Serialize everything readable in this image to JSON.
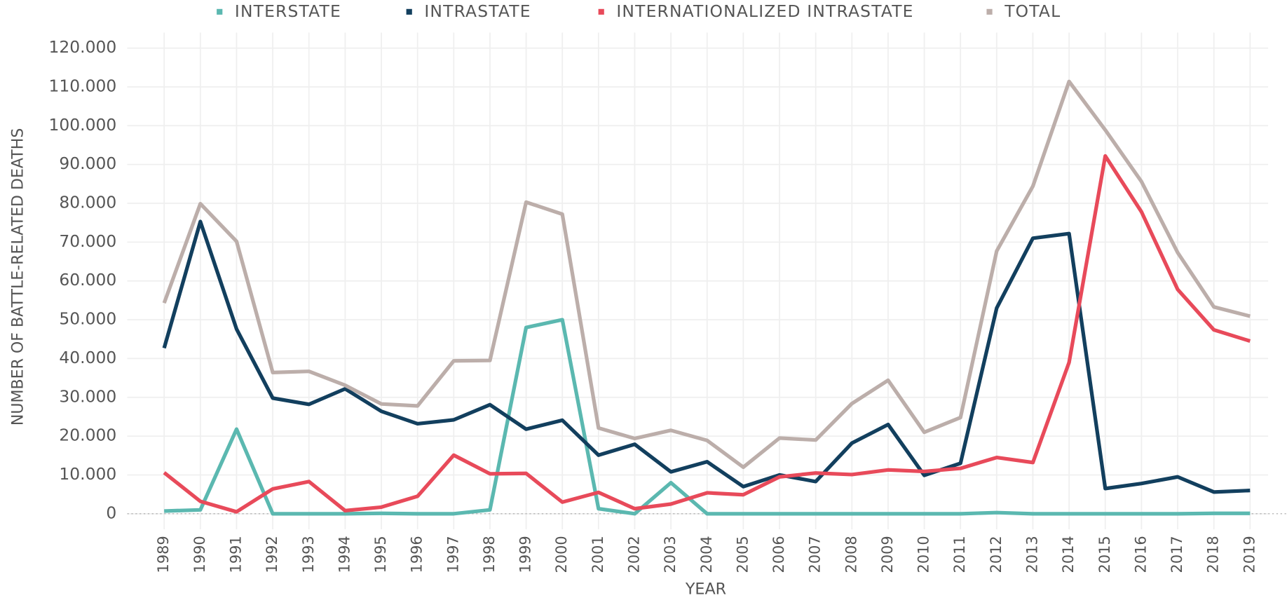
{
  "chart_data": {
    "type": "line",
    "x_label": "YEAR",
    "y_label": "NUMBER OF BATTLE-RELATED DEATHS",
    "categories": [
      "1989",
      "1990",
      "1991",
      "1992",
      "1993",
      "1994",
      "1995",
      "1996",
      "1997",
      "1998",
      "1999",
      "2000",
      "2001",
      "2002",
      "2003",
      "2004",
      "2005",
      "2006",
      "2007",
      "2008",
      "2009",
      "2010",
      "2011",
      "2012",
      "2013",
      "2014",
      "2015",
      "2016",
      "2017",
      "2018",
      "2019"
    ],
    "series": [
      {
        "name": "INTERSTATE",
        "color": "#5bb8b0",
        "values": [
          700,
          1000,
          21800,
          0,
          0,
          0,
          100,
          0,
          0,
          1000,
          48000,
          50000,
          1300,
          0,
          8000,
          0,
          0,
          0,
          0,
          0,
          0,
          0,
          0,
          300,
          0,
          0,
          0,
          0,
          0,
          100,
          100
        ]
      },
      {
        "name": "INTRASTATE",
        "color": "#123f5e",
        "values": [
          42700,
          75300,
          47600,
          29800,
          28200,
          32200,
          26400,
          23200,
          24200,
          28100,
          21800,
          24100,
          15100,
          17900,
          10800,
          13400,
          7000,
          10000,
          8300,
          18200,
          23000,
          9900,
          13000,
          53000,
          71000,
          72200,
          6500,
          7800,
          9500,
          5600,
          6000
        ]
      },
      {
        "name": "INTERNATIONALIZED INTRASTATE",
        "color": "#e84a5a",
        "values": [
          10600,
          3200,
          500,
          6400,
          8300,
          800,
          1700,
          4500,
          15100,
          10300,
          10400,
          3000,
          5500,
          1300,
          2500,
          5400,
          4900,
          9500,
          10500,
          10100,
          11300,
          10900,
          11700,
          14500,
          13200,
          39000,
          92200,
          77800,
          57800,
          47400,
          44500
        ]
      },
      {
        "name": "TOTAL",
        "color": "#bcaeaa",
        "values": [
          54300,
          79900,
          70200,
          36400,
          36700,
          33100,
          28300,
          27800,
          39400,
          39500,
          80300,
          77200,
          22100,
          19400,
          21500,
          18900,
          12000,
          19500,
          19000,
          28400,
          34400,
          21000,
          24800,
          67700,
          84400,
          111400,
          98900,
          85600,
          67300,
          53300,
          50900
        ]
      }
    ],
    "ylim": [
      -4000,
      124000
    ],
    "yticks": [
      0,
      {
        "value": 10000,
        "label": "10.000"
      },
      {
        "value": 20000,
        "label": "20.000"
      },
      {
        "value": 30000,
        "label": "30.000"
      },
      {
        "value": 40000,
        "label": "40.000"
      },
      {
        "value": 50000,
        "label": "50.000"
      },
      {
        "value": 60000,
        "label": "60.000"
      },
      {
        "value": 70000,
        "label": "70.000"
      },
      {
        "value": 80000,
        "label": "80.000"
      },
      {
        "value": 90000,
        "label": "90.000"
      },
      {
        "value": 100000,
        "label": "100.000"
      },
      {
        "value": 110000,
        "label": "110.000"
      },
      {
        "value": 120000,
        "label": "120.000"
      }
    ],
    "grid": true,
    "legend": "top"
  }
}
